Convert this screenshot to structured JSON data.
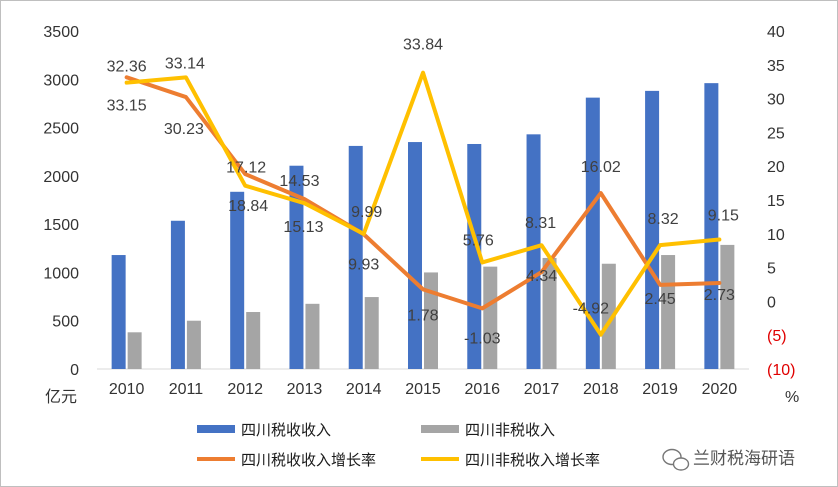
{
  "chart_data": {
    "type": "bar+line",
    "categories": [
      "2010",
      "2011",
      "2012",
      "2013",
      "2014",
      "2015",
      "2016",
      "2017",
      "2018",
      "2019",
      "2020"
    ],
    "left_axis": {
      "unit": "亿元",
      "ylim": [
        0,
        3500
      ],
      "ticks": [
        0,
        500,
        1000,
        1500,
        2000,
        2500,
        3000,
        3500
      ]
    },
    "right_axis": {
      "unit": "%",
      "ylim": [
        -10,
        40
      ],
      "ticks": [
        40,
        35,
        30,
        25,
        20,
        15,
        10,
        5,
        0,
        -5,
        -10
      ],
      "tick_labels": [
        "40",
        "35",
        "30",
        "25",
        "20",
        "15",
        "10",
        "5",
        "0",
        "(5)",
        "(10)"
      ],
      "negative_color": "#e00000"
    },
    "bar_series": [
      {
        "name": "四川税收收入",
        "color": "#4472c4",
        "axis": "left",
        "values": [
          1180,
          1535,
          1835,
          2105,
          2310,
          2350,
          2330,
          2430,
          2810,
          2880,
          2960
        ]
      },
      {
        "name": "四川非税收入",
        "color": "#a5a5a5",
        "axis": "left",
        "values": [
          380,
          500,
          590,
          675,
          745,
          1000,
          1060,
          1150,
          1090,
          1180,
          1285
        ]
      }
    ],
    "line_series": [
      {
        "name": "四川税收收入增长率",
        "color": "#ed7d31",
        "axis": "right",
        "values": [
          33.15,
          30.23,
          18.84,
          15.13,
          9.93,
          1.78,
          -1.03,
          4.34,
          16.02,
          2.45,
          2.73
        ]
      },
      {
        "name": "四川非税收入增长率",
        "color": "#ffc000",
        "axis": "right",
        "values": [
          32.36,
          33.14,
          17.12,
          14.53,
          9.99,
          33.84,
          5.76,
          8.31,
          -4.92,
          8.32,
          9.15
        ]
      }
    ],
    "labels": {
      "tax_growth": [
        "33.15",
        "30.23",
        "18.84",
        "15.13",
        "9.93",
        "1.78",
        "-1.03",
        "4.34",
        "16.02",
        "2.45",
        "2.73"
      ],
      "nontax_growth": [
        "32.36",
        "33.14",
        "17.12",
        "14.53",
        "9.99",
        "33.84",
        "5.76",
        "8.31",
        "-4.92",
        "8.32",
        "9.15"
      ]
    },
    "legend_position": "bottom",
    "grid": false
  },
  "watermark": {
    "text": "兰财税海研语"
  }
}
